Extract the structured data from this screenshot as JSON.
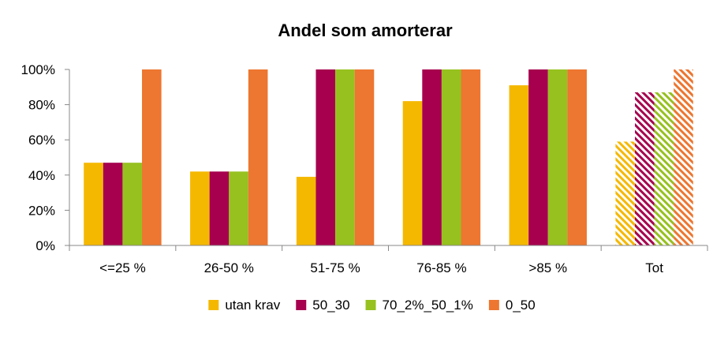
{
  "chart_data": {
    "type": "bar",
    "title": "Andel som amorterar",
    "xlabel": "",
    "ylabel": "",
    "categories": [
      "<=25 %",
      "26-50 %",
      "51-75 %",
      "76-85 %",
      ">85 %",
      "Tot"
    ],
    "ylim": [
      0,
      100
    ],
    "yticks": [
      "0%",
      "20%",
      "40%",
      "60%",
      "80%",
      "100%"
    ],
    "grid": false,
    "legend": "bottom",
    "hatched_categories": [
      "Tot"
    ],
    "series": [
      {
        "name": "utan krav",
        "color": "#F5B800",
        "values": [
          47,
          42,
          39,
          82,
          91,
          59
        ]
      },
      {
        "name": "50_30",
        "color": "#A6004E",
        "values": [
          47,
          42,
          100,
          100,
          100,
          87
        ]
      },
      {
        "name": "70_2%_50_1%",
        "color": "#96C11F",
        "values": [
          47,
          42,
          100,
          100,
          100,
          87
        ]
      },
      {
        "name": "0_50",
        "color": "#ED7630",
        "values": [
          100,
          100,
          100,
          100,
          100,
          100
        ]
      }
    ]
  }
}
